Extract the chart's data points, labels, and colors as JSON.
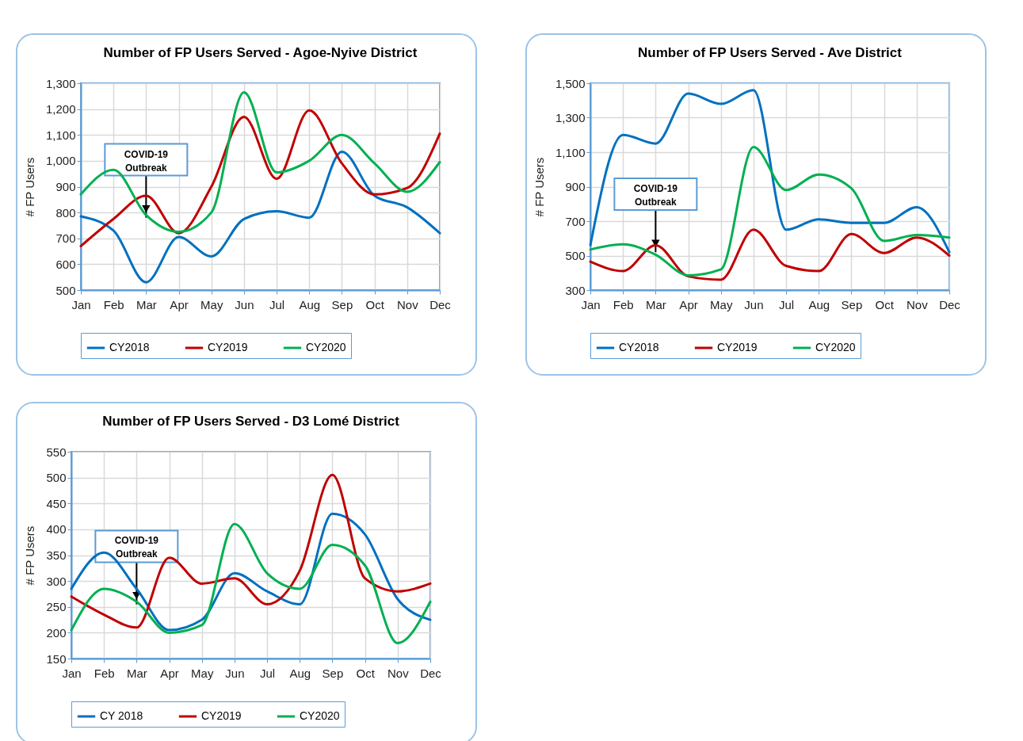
{
  "chart_data": [
    {
      "type": "line",
      "title": "Number of FP Users Served - Agoe-Nyive District",
      "ylabel": "# FP Users",
      "categories": [
        "Jan",
        "Feb",
        "Mar",
        "Apr",
        "May",
        "Jun",
        "Jul",
        "Aug",
        "Sep",
        "Oct",
        "Nov",
        "Dec"
      ],
      "series": [
        {
          "name": "CY2018",
          "color": "#0070c0",
          "values": [
            785,
            730,
            530,
            705,
            630,
            775,
            805,
            780,
            1035,
            865,
            820,
            720
          ]
        },
        {
          "name": "CY2019",
          "color": "#c00000",
          "values": [
            670,
            775,
            865,
            720,
            900,
            1170,
            930,
            1195,
            990,
            870,
            895,
            1105
          ]
        },
        {
          "name": "CY2020",
          "color": "#00b050",
          "values": [
            870,
            965,
            790,
            725,
            800,
            1265,
            955,
            1000,
            1100,
            990,
            880,
            995
          ]
        }
      ],
      "ylim": [
        500,
        1300
      ],
      "yticks": [
        500,
        600,
        700,
        800,
        900,
        {
          "value": 1000,
          "label": "1,000"
        },
        {
          "value": 1100,
          "label": "1,100"
        },
        {
          "value": 1200,
          "label": "1,200"
        },
        {
          "value": 1300,
          "label": "1,300"
        }
      ],
      "grid": true,
      "legend": "bottom",
      "annotations": [
        {
          "text": "COVID-19 Outbreak",
          "x": "Mar",
          "y": 780
        }
      ]
    },
    {
      "type": "line",
      "title": "Number of FP Users Served - Ave District",
      "ylabel": "# FP Users",
      "categories": [
        "Jan",
        "Feb",
        "Mar",
        "Apr",
        "May",
        "Jun",
        "Jul",
        "Aug",
        "Sep",
        "Oct",
        "Nov",
        "Dec"
      ],
      "series": [
        {
          "name": "CY2018",
          "color": "#0070c0",
          "values": [
            560,
            1200,
            1150,
            1440,
            1380,
            1460,
            650,
            710,
            690,
            690,
            780,
            520
          ]
        },
        {
          "name": "CY2019",
          "color": "#c00000",
          "values": [
            465,
            410,
            560,
            380,
            360,
            650,
            440,
            410,
            625,
            515,
            605,
            500
          ]
        },
        {
          "name": "CY2020",
          "color": "#00b050",
          "values": [
            535,
            565,
            505,
            385,
            420,
            1130,
            880,
            970,
            890,
            585,
            620,
            605
          ]
        }
      ],
      "ylim": [
        300,
        1500
      ],
      "yticks": [
        300,
        500,
        700,
        900,
        {
          "value": 1100,
          "label": "1,100"
        },
        {
          "value": 1300,
          "label": "1,300"
        },
        {
          "value": 1500,
          "label": "1,500"
        }
      ],
      "grid": true,
      "legend": "bottom",
      "annotations": [
        {
          "text": "COVID-19 Outbreak",
          "x": "Mar",
          "y": 520
        }
      ]
    },
    {
      "type": "line",
      "title": "Number of FP Users Served - D3 Lomé District",
      "ylabel": "# FP Users",
      "categories": [
        "Jan",
        "Feb",
        "Mar",
        "Apr",
        "May",
        "Jun",
        "Jul",
        "Aug",
        "Sep",
        "Oct",
        "Nov",
        "Dec"
      ],
      "series": [
        {
          "name": "CY 2018",
          "color": "#0070c0",
          "values": [
            285,
            355,
            285,
            205,
            225,
            315,
            280,
            255,
            430,
            390,
            265,
            225
          ]
        },
        {
          "name": "CY2019",
          "color": "#c00000",
          "values": [
            270,
            235,
            210,
            345,
            295,
            305,
            255,
            320,
            505,
            305,
            280,
            295
          ]
        },
        {
          "name": "CY2020",
          "color": "#00b050",
          "values": [
            205,
            285,
            260,
            200,
            215,
            410,
            315,
            285,
            370,
            330,
            180,
            260
          ]
        }
      ],
      "ylim": [
        150,
        550
      ],
      "yticks": [
        150,
        200,
        250,
        300,
        350,
        400,
        450,
        500,
        550
      ],
      "grid": true,
      "legend": "bottom",
      "annotations": [
        {
          "text": "COVID-19 Outbreak",
          "x": "Mar",
          "y": 255
        }
      ]
    }
  ]
}
